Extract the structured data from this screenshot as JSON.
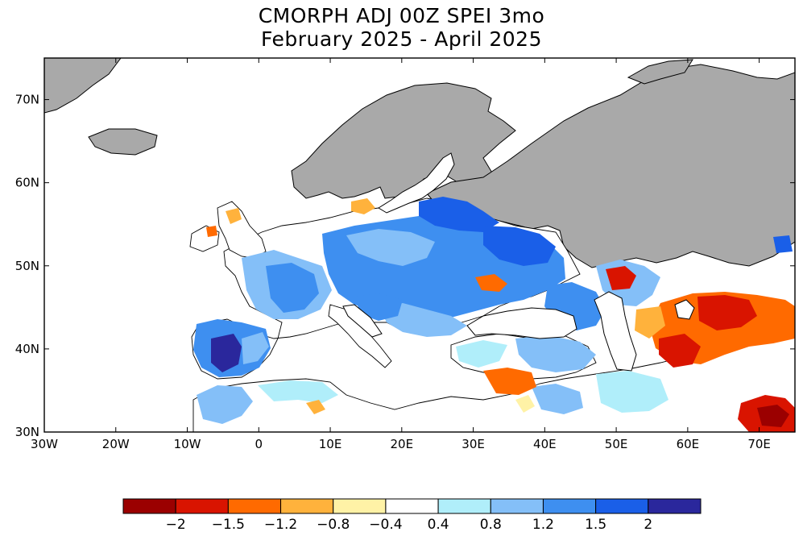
{
  "title": {
    "line1": "CMORPH ADJ 00Z SPEI 3mo",
    "line2": "February 2025 - April 2025"
  },
  "map": {
    "region": "Europe / Mediterranean / Middle East",
    "lon_range": [
      -30,
      75
    ],
    "lat_range": [
      30,
      75
    ],
    "lon_ticks": [
      {
        "value": -30,
        "label": "30W"
      },
      {
        "value": -20,
        "label": "20W"
      },
      {
        "value": -10,
        "label": "10W"
      },
      {
        "value": 0,
        "label": "0"
      },
      {
        "value": 10,
        "label": "10E"
      },
      {
        "value": 20,
        "label": "20E"
      },
      {
        "value": 30,
        "label": "30E"
      },
      {
        "value": 40,
        "label": "40E"
      },
      {
        "value": 50,
        "label": "50E"
      },
      {
        "value": 60,
        "label": "60E"
      },
      {
        "value": 70,
        "label": "70E"
      }
    ],
    "lat_ticks": [
      {
        "value": 30,
        "label": "30N"
      },
      {
        "value": 40,
        "label": "40N"
      },
      {
        "value": 50,
        "label": "50N"
      },
      {
        "value": 60,
        "label": "60N"
      },
      {
        "value": 70,
        "label": "70N"
      }
    ],
    "no_data_color": "#a9a9a9"
  },
  "colorbar": {
    "colors": [
      "#9b0000",
      "#d91400",
      "#ff6a00",
      "#ffb23c",
      "#fff2a6",
      "#ffffff",
      "#b0eefa",
      "#84bff8",
      "#3e8ff0",
      "#1a5fe8",
      "#2a279c"
    ],
    "labels": [
      "-2",
      "-1.5",
      "-1.2",
      "-0.8",
      "-0.4",
      "0.4",
      "0.8",
      "1.2",
      "1.5",
      "2"
    ]
  }
}
